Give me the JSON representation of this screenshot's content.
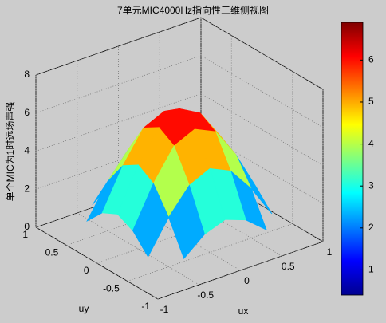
{
  "chart_data": {
    "type": "surface",
    "title": "7单元MIC4000Hz指向性三维侧视图",
    "xlabel": "ux",
    "ylabel": "uy",
    "zlabel": "单个MIC为1时远场声强",
    "x": [
      -1,
      -0.75,
      -0.5,
      -0.25,
      0,
      0.25,
      0.5,
      0.75,
      1
    ],
    "y": [
      -1,
      -0.75,
      -0.5,
      -0.25,
      0,
      0.25,
      0.5,
      0.75,
      1
    ],
    "z": [
      [
        null,
        null,
        null,
        null,
        0.4,
        null,
        null,
        null,
        null
      ],
      [
        null,
        null,
        0.9,
        1.8,
        2.2,
        1.8,
        0.9,
        null,
        null
      ],
      [
        null,
        0.9,
        2.6,
        3.9,
        4.4,
        3.9,
        2.6,
        0.9,
        null
      ],
      [
        null,
        1.8,
        3.9,
        5.5,
        6.0,
        5.5,
        3.9,
        1.8,
        null
      ],
      [
        0.4,
        2.2,
        4.4,
        6.0,
        6.6,
        6.0,
        4.4,
        2.2,
        0.4
      ],
      [
        null,
        1.8,
        3.9,
        5.5,
        6.0,
        5.5,
        3.9,
        1.8,
        null
      ],
      [
        null,
        0.9,
        2.6,
        3.9,
        4.4,
        3.9,
        2.6,
        0.9,
        null
      ],
      [
        null,
        null,
        0.9,
        1.8,
        2.2,
        1.8,
        0.9,
        null,
        null
      ],
      [
        null,
        null,
        null,
        null,
        0.4,
        null,
        null,
        null,
        null
      ]
    ],
    "xlim": [
      -1,
      1
    ],
    "ylim": [
      -1,
      1
    ],
    "zlim": [
      0,
      8
    ],
    "xticks": [
      -1,
      -0.5,
      0,
      0.5,
      1
    ],
    "yticks": [
      -1,
      -0.5,
      0,
      0.5,
      1
    ],
    "zticks": [
      0,
      2,
      4,
      6,
      8
    ],
    "colormap": "jet",
    "clim": [
      0.4,
      6.9
    ],
    "cticks": [
      1,
      2,
      3,
      4,
      5,
      6
    ],
    "grid": true
  }
}
